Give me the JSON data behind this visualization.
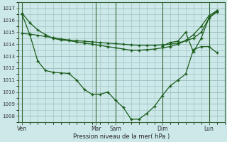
{
  "background_color": "#cce8e8",
  "grid_color": "#99bbbb",
  "line_color": "#1a5c1a",
  "xlabel": "Pression niveau de la mer( hPa )",
  "ylim": [
    1007.5,
    1017.5
  ],
  "yticks": [
    1008,
    1009,
    1010,
    1011,
    1012,
    1013,
    1014,
    1015,
    1016,
    1017
  ],
  "day_labels": [
    "Ven",
    "Mar",
    "Sam",
    "Dim",
    "Lun"
  ],
  "day_x": [
    0,
    9.5,
    12,
    18,
    24
  ],
  "xlim": [
    -0.5,
    26
  ],
  "series1_x": [
    0,
    1,
    2,
    3,
    4,
    5,
    6,
    7,
    8,
    9,
    10,
    11,
    12,
    13,
    14,
    15,
    16,
    17,
    18,
    19,
    20,
    21,
    22,
    23,
    24,
    25
  ],
  "series1_y": [
    1016.6,
    1015.8,
    1015.2,
    1014.8,
    1014.5,
    1014.35,
    1014.3,
    1014.2,
    1014.1,
    1014.0,
    1013.9,
    1013.8,
    1013.7,
    1013.6,
    1013.5,
    1013.5,
    1013.55,
    1013.6,
    1013.7,
    1013.8,
    1014.0,
    1014.3,
    1014.8,
    1015.5,
    1016.4,
    1016.8
  ],
  "series2_x": [
    0,
    1,
    2,
    3,
    4,
    5,
    6,
    7,
    8,
    9,
    10,
    11,
    12,
    13,
    14,
    15,
    16,
    17,
    18,
    19,
    20,
    21,
    22,
    23,
    24,
    25
  ],
  "series2_y": [
    1014.9,
    1014.85,
    1014.75,
    1014.65,
    1014.55,
    1014.45,
    1014.35,
    1014.3,
    1014.25,
    1014.2,
    1014.15,
    1014.1,
    1014.05,
    1014.0,
    1013.95,
    1013.9,
    1013.9,
    1013.92,
    1013.95,
    1014.0,
    1014.1,
    1014.3,
    1014.5,
    1015.0,
    1016.2,
    1016.7
  ],
  "series3_x": [
    0,
    1,
    2,
    3,
    4,
    5,
    6,
    7,
    8,
    9,
    10,
    11,
    12,
    13,
    14,
    15,
    16,
    17,
    18,
    19,
    20,
    21,
    22,
    23,
    24,
    25
  ],
  "series3_y": [
    1016.5,
    1014.8,
    1012.6,
    1011.8,
    1011.65,
    1011.6,
    1011.55,
    1011.0,
    1010.2,
    1009.8,
    1009.8,
    1010.0,
    1009.3,
    1008.7,
    1007.72,
    1007.72,
    1008.2,
    1008.8,
    1009.7,
    1010.5,
    1011.0,
    1011.5,
    1013.55,
    1013.8,
    1013.8,
    1013.3
  ],
  "series4_x": [
    18,
    19,
    20,
    21,
    22,
    23,
    24,
    25
  ],
  "series4_y": [
    1013.85,
    1014.15,
    1014.25,
    1015.0,
    1013.35,
    1014.5,
    1016.2,
    1016.8
  ]
}
